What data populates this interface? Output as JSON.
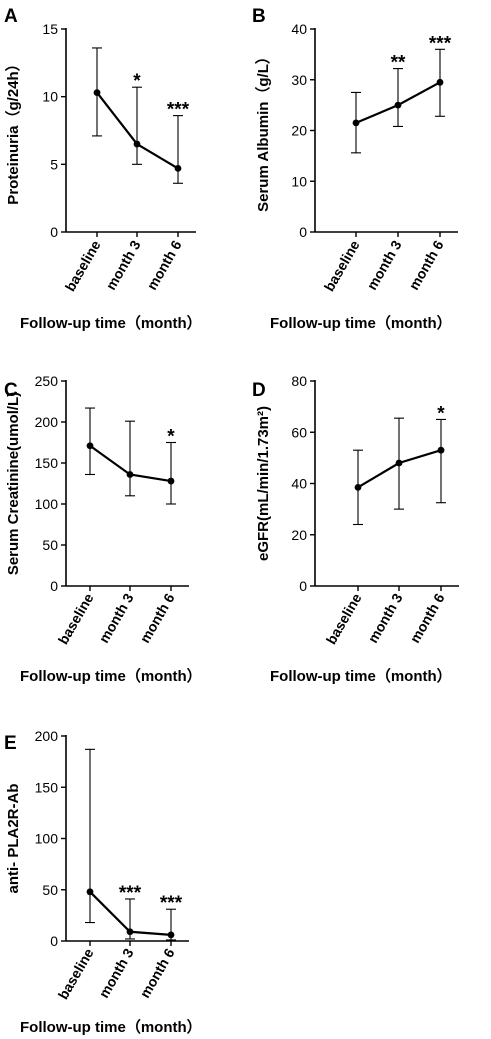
{
  "chart_data": [
    {
      "panel": "A",
      "type": "line",
      "categories": [
        "baseline",
        "month 3",
        "month 6"
      ],
      "values": [
        10.3,
        6.5,
        4.7
      ],
      "error_low": [
        7.1,
        5.0,
        3.6
      ],
      "error_high": [
        13.6,
        10.7,
        8.6
      ],
      "significance": [
        "",
        "*",
        "***"
      ],
      "ylabel": "Proteinuria（g/24h）",
      "xlabel": "Follow-up time（month）",
      "ylim": [
        0,
        15
      ],
      "yticks": [
        0,
        5,
        10,
        15
      ]
    },
    {
      "panel": "B",
      "type": "line",
      "categories": [
        "baseline",
        "month 3",
        "month 6"
      ],
      "values": [
        21.5,
        25.0,
        29.5
      ],
      "error_low": [
        15.6,
        20.8,
        22.8
      ],
      "error_high": [
        27.5,
        32.2,
        36.0
      ],
      "significance": [
        "",
        "**",
        "***"
      ],
      "ylabel": "Serum Albumin（g/L）",
      "xlabel": "Follow-up time（month）",
      "ylim": [
        0,
        40
      ],
      "yticks": [
        0,
        10,
        20,
        30,
        40
      ]
    },
    {
      "panel": "C",
      "type": "line",
      "categories": [
        "baseline",
        "month 3",
        "month 6"
      ],
      "values": [
        171,
        136,
        128
      ],
      "error_low": [
        136,
        110,
        100
      ],
      "error_high": [
        217,
        201,
        175
      ],
      "significance": [
        "",
        "",
        "*"
      ],
      "ylabel": "Serum Creatinine(umol/L)",
      "xlabel": "Follow-up time（month）",
      "ylim": [
        0,
        250
      ],
      "yticks": [
        0,
        50,
        100,
        150,
        200,
        250
      ]
    },
    {
      "panel": "D",
      "type": "line",
      "categories": [
        "baseline",
        "month 3",
        "month 6"
      ],
      "values": [
        38.5,
        48,
        53
      ],
      "error_low": [
        24,
        30,
        32.5
      ],
      "error_high": [
        53,
        65.5,
        65
      ],
      "significance": [
        "",
        "",
        "*"
      ],
      "ylabel": "eGFR(mL/min/1.73m²)",
      "xlabel": "Follow-up time（month）",
      "ylim": [
        0,
        80
      ],
      "yticks": [
        0,
        20,
        40,
        60,
        80
      ]
    },
    {
      "panel": "E",
      "type": "line",
      "categories": [
        "baseline",
        "month 3",
        "month 6"
      ],
      "values": [
        48,
        9,
        6
      ],
      "error_low": [
        18,
        2,
        1
      ],
      "error_high": [
        187,
        41,
        31
      ],
      "significance": [
        "",
        "***",
        "***"
      ],
      "ylabel": "anti- PLA2R-Ab",
      "xlabel": "Follow-up time（month）",
      "ylim": [
        0,
        200
      ],
      "yticks": [
        0,
        50,
        100,
        150,
        200
      ]
    }
  ]
}
